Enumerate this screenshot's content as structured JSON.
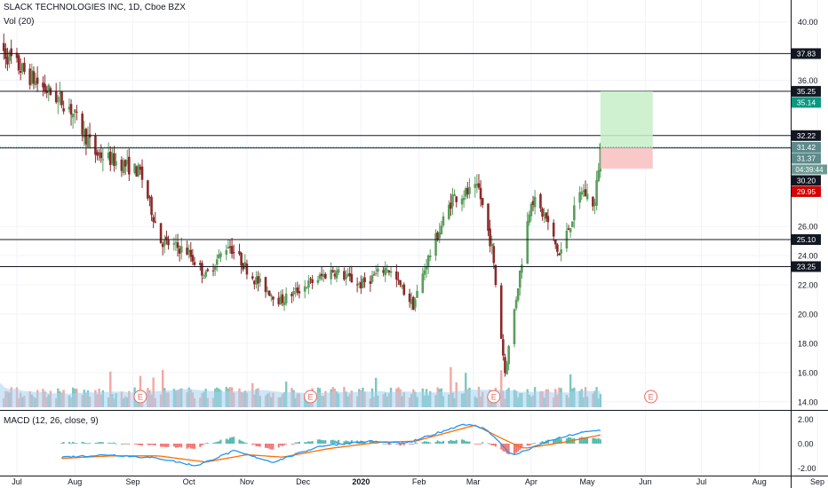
{
  "header": {
    "symbol_line": "SLACK TECHNOLOGIES INC, 1D, Cboe BZX",
    "vol_label": "Vol (20)",
    "macd_label": "MACD (12, 26, close, 9)"
  },
  "colors": {
    "up": "#26a69a",
    "down": "#ef5350",
    "candle_up": "#5a9e5c",
    "candle_down": "#8b2a2a",
    "vol_up": "#7cc7bd",
    "vol_down": "#f4a7a3",
    "vol_ma": "#a6d1f0",
    "macd_line": "#2196f3",
    "signal_line": "#ff6d00",
    "target_zone": "#c8eec8",
    "stop_zone": "#f8c0c0",
    "earnings": "#e66b60"
  },
  "chart_data": {
    "type": "candlestick",
    "x_axis_labels": [
      "Jul",
      "Aug",
      "Sep",
      "Oct",
      "Nov",
      "Dec",
      "2020",
      "Feb",
      "Mar",
      "Apr",
      "May",
      "Jun",
      "Jul",
      "Aug",
      "Sep"
    ],
    "x_axis_dates": [
      "2019-07-01",
      "2019-08-01",
      "2019-09-01",
      "2019-10-01",
      "2019-11-01",
      "2019-12-01",
      "2020-01-01",
      "2020-02-01",
      "2020-03-01",
      "2020-04-01",
      "2020-05-01",
      "2020-06-01",
      "2020-07-01",
      "2020-08-01",
      "2020-09-01"
    ],
    "price_axis": {
      "ticks": [
        "40.00",
        "36.00",
        "26.00",
        "24.00",
        "22.00",
        "20.00",
        "18.00",
        "16.00",
        "14.00"
      ],
      "ylim": [
        13.5,
        41.5
      ]
    },
    "horizontal_levels": [
      {
        "value": 37.83,
        "label": "37.83"
      },
      {
        "value": 35.25,
        "label": "35.25"
      },
      {
        "value": 32.22,
        "label": "32.22"
      },
      {
        "value": 31.37,
        "label": "31.37"
      },
      {
        "value": 25.1,
        "label": "25.10"
      },
      {
        "value": 23.25,
        "label": "23.25"
      }
    ],
    "price_tags": [
      {
        "value": 37.83,
        "label": "37.83",
        "style": "level"
      },
      {
        "value": 35.25,
        "label": "35.25",
        "style": "level"
      },
      {
        "value": 35.14,
        "label": "35.14",
        "style": "target"
      },
      {
        "value": 32.22,
        "label": "32.22",
        "style": "level"
      },
      {
        "value": 31.42,
        "label": "31.42",
        "style": "last"
      },
      {
        "value": 31.37,
        "label": "31.37",
        "style": "last"
      },
      {
        "value": 30.2,
        "label": "30.20",
        "style": "level"
      },
      {
        "value": 29.95,
        "label": "29.95",
        "style": "stop"
      },
      {
        "value": 25.1,
        "label": "25.10",
        "style": "level"
      },
      {
        "value": 23.25,
        "label": "23.25",
        "style": "level"
      }
    ],
    "countdown": "04:39:44",
    "position": {
      "start": "2020-05-08",
      "end": "2020-06-05",
      "entry": 31.37,
      "target": 35.25,
      "stop": 29.95
    },
    "price_anchors": [
      [
        "2019-06-20",
        38.5
      ],
      [
        "2019-07-01",
        37.0
      ],
      [
        "2019-07-15",
        35.5
      ],
      [
        "2019-07-29",
        34.2
      ],
      [
        "2019-08-12",
        31.0
      ],
      [
        "2019-08-26",
        30.3
      ],
      [
        "2019-09-05",
        29.7
      ],
      [
        "2019-09-16",
        25.0
      ],
      [
        "2019-09-30",
        24.3
      ],
      [
        "2019-10-10",
        22.6
      ],
      [
        "2019-10-22",
        24.8
      ],
      [
        "2019-11-05",
        22.4
      ],
      [
        "2019-11-19",
        20.9
      ],
      [
        "2019-12-03",
        22.0
      ],
      [
        "2019-12-17",
        23.0
      ],
      [
        "2020-01-01",
        22.0
      ],
      [
        "2020-01-15",
        23.2
      ],
      [
        "2020-01-29",
        20.6
      ],
      [
        "2020-02-05",
        23.5
      ],
      [
        "2020-02-19",
        28.0
      ],
      [
        "2020-03-04",
        28.5
      ],
      [
        "2020-03-11",
        24.5
      ],
      [
        "2020-03-18",
        16.0
      ],
      [
        "2020-03-25",
        22.0
      ],
      [
        "2020-04-01",
        28.0
      ],
      [
        "2020-04-09",
        26.5
      ],
      [
        "2020-04-16",
        24.0
      ],
      [
        "2020-04-28",
        28.5
      ],
      [
        "2020-05-05",
        27.5
      ],
      [
        "2020-05-08",
        31.5
      ]
    ],
    "earnings_markers": [
      "2019-09-05",
      "2019-12-05",
      "2020-03-12",
      "2020-06-04"
    ],
    "macd_axis": {
      "ticks": [
        "2.00",
        "0.00",
        "-2.00"
      ],
      "ylim": [
        -2.6,
        2.6
      ]
    },
    "macd_anchors": [
      [
        "2019-07-25",
        -1.1
      ],
      [
        "2019-08-20",
        -0.9
      ],
      [
        "2019-09-15",
        -1.2
      ],
      [
        "2019-10-05",
        -1.8
      ],
      [
        "2019-10-25",
        -0.6
      ],
      [
        "2019-11-15",
        -1.5
      ],
      [
        "2019-12-10",
        -0.2
      ],
      [
        "2020-01-05",
        0.2
      ],
      [
        "2020-01-25",
        0.0
      ],
      [
        "2020-02-25",
        1.6
      ],
      [
        "2020-03-08",
        1.2
      ],
      [
        "2020-03-22",
        -1.0
      ],
      [
        "2020-04-12",
        0.3
      ],
      [
        "2020-04-28",
        0.9
      ],
      [
        "2020-05-08",
        1.1
      ]
    ],
    "signal_anchors": [
      [
        "2019-07-25",
        -1.2
      ],
      [
        "2019-08-20",
        -1.0
      ],
      [
        "2019-09-15",
        -1.0
      ],
      [
        "2019-10-10",
        -1.5
      ],
      [
        "2019-11-01",
        -0.9
      ],
      [
        "2019-11-20",
        -1.1
      ],
      [
        "2019-12-15",
        -0.4
      ],
      [
        "2020-01-10",
        0.1
      ],
      [
        "2020-01-30",
        0.2
      ],
      [
        "2020-03-02",
        1.5
      ],
      [
        "2020-03-18",
        0.3
      ],
      [
        "2020-03-28",
        -0.4
      ],
      [
        "2020-04-18",
        0.1
      ],
      [
        "2020-05-08",
        0.7
      ]
    ]
  }
}
